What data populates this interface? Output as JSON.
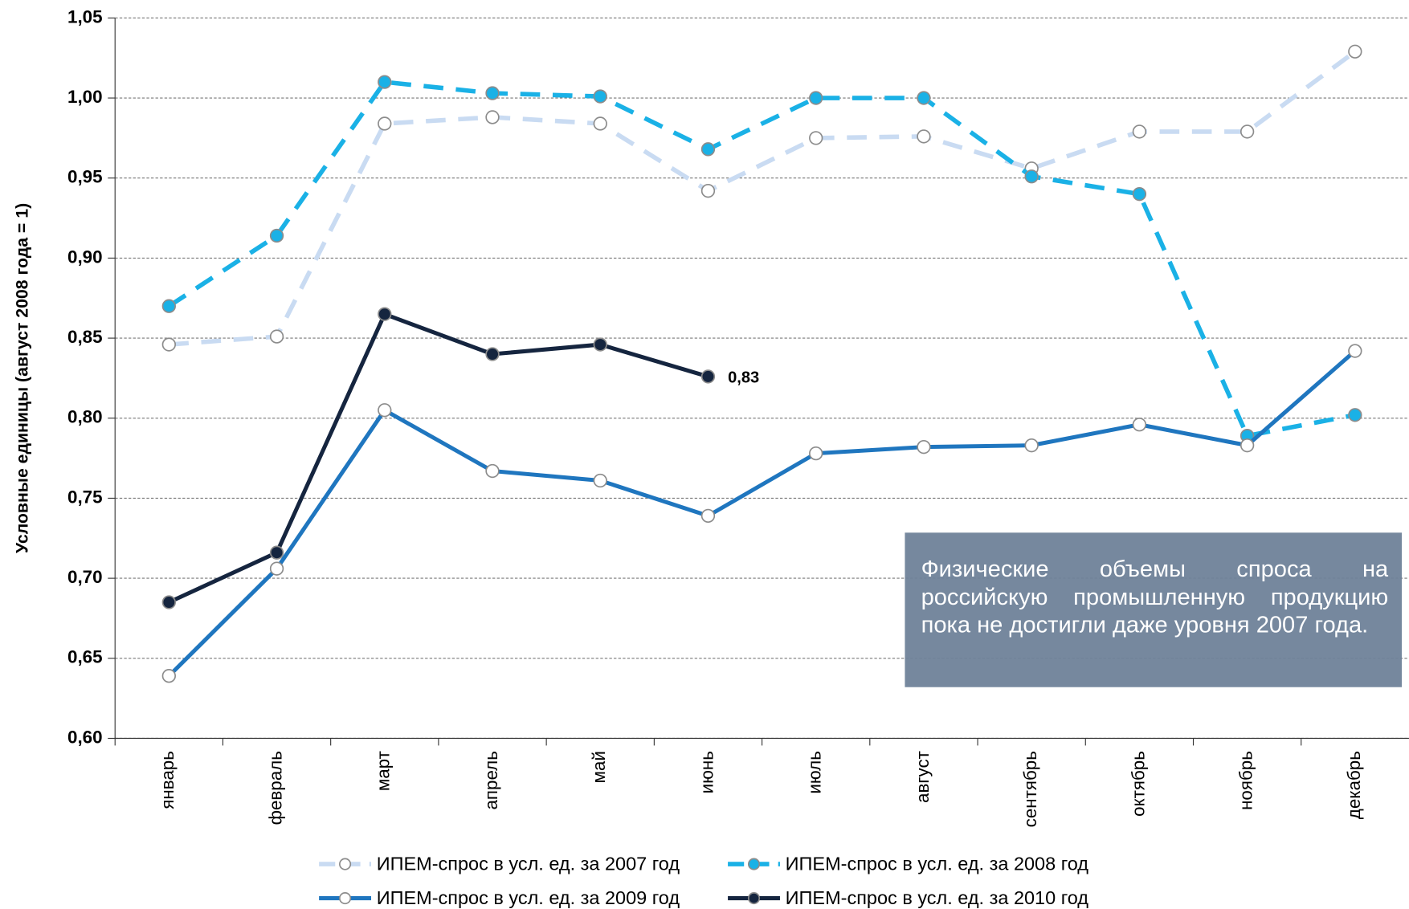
{
  "chart_data": {
    "type": "line",
    "y_label": "Условные единицы (август 2008 года = 1)",
    "annotation": "Физические объемы спроса на российскую промышленную продукцию пока не достигли даже уровня 2007 года.",
    "categories": [
      "январь",
      "февраль",
      "март",
      "апрель",
      "май",
      "июнь",
      "июль",
      "август",
      "сентябрь",
      "октябрь",
      "ноябрь",
      "декабрь"
    ],
    "ylim": [
      0.6,
      1.05
    ],
    "yticks": [
      {
        "value": 0.6,
        "label": "0,60"
      },
      {
        "value": 0.65,
        "label": "0,65"
      },
      {
        "value": 0.7,
        "label": "0,70"
      },
      {
        "value": 0.75,
        "label": "0,75"
      },
      {
        "value": 0.8,
        "label": "0,80"
      },
      {
        "value": 0.85,
        "label": "0,85"
      },
      {
        "value": 0.9,
        "label": "0,90"
      },
      {
        "value": 0.95,
        "label": "0,95"
      },
      {
        "value": 1.0,
        "label": "1,00"
      },
      {
        "value": 1.05,
        "label": "1,05"
      }
    ],
    "grid": true,
    "series": [
      {
        "name": "ИПЕМ-спрос в усл. ед. за 2007 год",
        "color": "#c9dbf2",
        "dashed": true,
        "marker_fill": "#ffffff",
        "values": [
          0.846,
          0.851,
          0.984,
          0.988,
          0.984,
          0.942,
          0.975,
          0.976,
          0.956,
          0.979,
          0.979,
          1.029
        ]
      },
      {
        "name": "ИПЕМ-спрос в усл. ед. за 2008 год",
        "color": "#1ab1e6",
        "dashed": true,
        "marker_fill": "#1ab1e6",
        "values": [
          0.87,
          0.914,
          1.01,
          1.003,
          1.001,
          0.968,
          1.0,
          1.0,
          0.951,
          0.94,
          0.789,
          0.802
        ]
      },
      {
        "name": "ИПЕМ-спрос в усл. ед. за 2009 год",
        "color": "#1f76bf",
        "dashed": false,
        "marker_fill": "#ffffff",
        "values": [
          0.639,
          0.706,
          0.805,
          0.767,
          0.761,
          0.739,
          0.778,
          0.782,
          0.783,
          0.796,
          0.783,
          0.842
        ]
      },
      {
        "name": "ИПЕМ-спрос в усл. ед. за 2010 год",
        "color": "#15253f",
        "dashed": false,
        "marker_fill": "#15253f",
        "values": [
          0.685,
          0.716,
          0.865,
          0.84,
          0.846,
          0.826,
          null,
          null,
          null,
          null,
          null,
          null
        ],
        "value_labels": [
          null,
          null,
          null,
          null,
          null,
          "0,83",
          null,
          null,
          null,
          null,
          null,
          null
        ]
      }
    ]
  }
}
